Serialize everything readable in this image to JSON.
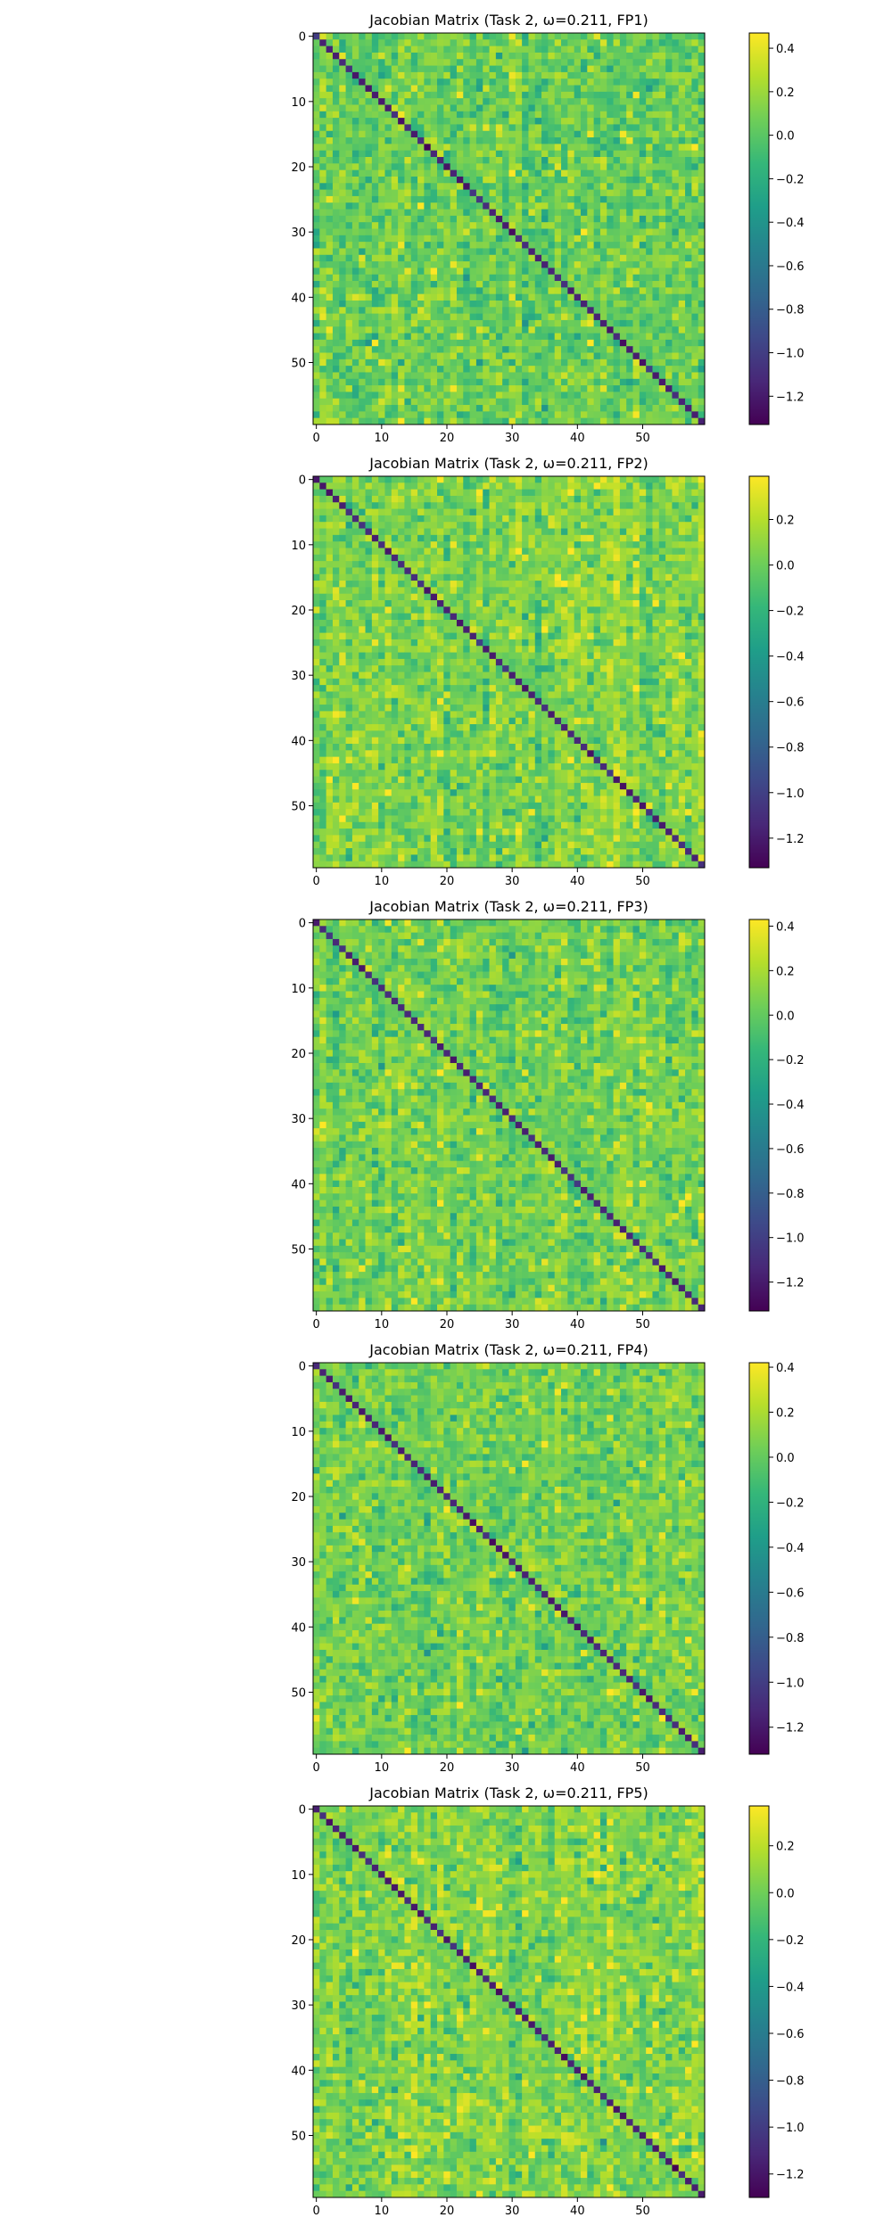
{
  "colormap": "viridis",
  "viridis_stops": [
    "#440154",
    "#482878",
    "#3e4989",
    "#31688e",
    "#26828e",
    "#1f9e89",
    "#35b779",
    "#6ece58",
    "#b5de2b",
    "#fde725"
  ],
  "chart_data": [
    {
      "type": "heatmap",
      "title": "Jacobian Matrix (Task 2, ω=0.211, FP1)",
      "matrix_size": 60,
      "xticks": [
        0,
        10,
        20,
        30,
        40,
        50
      ],
      "yticks": [
        0,
        10,
        20,
        30,
        40,
        50
      ],
      "xtick_labels": [
        "0",
        "10",
        "20",
        "30",
        "40",
        "50"
      ],
      "ytick_labels": [
        "0",
        "10",
        "20",
        "30",
        "40",
        "50"
      ],
      "vmin": -1.33,
      "vmax": 0.47,
      "colorbar_ticks": [
        0.4,
        0.2,
        0.0,
        -0.2,
        -0.4,
        -0.6,
        -0.8,
        -1.0,
        -1.2
      ],
      "colorbar_tick_labels": [
        "0.4",
        "0.2",
        "0.0",
        "−0.2",
        "−0.4",
        "−0.6",
        "−0.8",
        "−1.0",
        "−1.2"
      ],
      "diagonal_mean": -1.15,
      "off_diagonal_mean": 0.06,
      "off_diagonal_spread": 0.13,
      "seed": 11
    },
    {
      "type": "heatmap",
      "title": "Jacobian Matrix (Task 2, ω=0.211, FP2)",
      "matrix_size": 60,
      "xticks": [
        0,
        10,
        20,
        30,
        40,
        50
      ],
      "yticks": [
        0,
        10,
        20,
        30,
        40,
        50
      ],
      "xtick_labels": [
        "0",
        "10",
        "20",
        "30",
        "40",
        "50"
      ],
      "ytick_labels": [
        "0",
        "10",
        "20",
        "30",
        "40",
        "50"
      ],
      "vmin": -1.33,
      "vmax": 0.39,
      "colorbar_ticks": [
        0.2,
        0.0,
        -0.2,
        -0.4,
        -0.6,
        -0.8,
        -1.0,
        -1.2
      ],
      "colorbar_tick_labels": [
        "0.2",
        "0.0",
        "−0.2",
        "−0.4",
        "−0.6",
        "−0.8",
        "−1.0",
        "−1.2"
      ],
      "diagonal_mean": -1.15,
      "off_diagonal_mean": 0.05,
      "off_diagonal_spread": 0.12,
      "seed": 23
    },
    {
      "type": "heatmap",
      "title": "Jacobian Matrix (Task 2, ω=0.211, FP3)",
      "matrix_size": 60,
      "xticks": [
        0,
        10,
        20,
        30,
        40,
        50
      ],
      "yticks": [
        0,
        10,
        20,
        30,
        40,
        50
      ],
      "xtick_labels": [
        "0",
        "10",
        "20",
        "30",
        "40",
        "50"
      ],
      "ytick_labels": [
        "0",
        "10",
        "20",
        "30",
        "40",
        "50"
      ],
      "vmin": -1.33,
      "vmax": 0.43,
      "colorbar_ticks": [
        0.4,
        0.2,
        0.0,
        -0.2,
        -0.4,
        -0.6,
        -0.8,
        -1.0,
        -1.2
      ],
      "colorbar_tick_labels": [
        "0.4",
        "0.2",
        "0.0",
        "−0.2",
        "−0.4",
        "−0.6",
        "−0.8",
        "−1.0",
        "−1.2"
      ],
      "diagonal_mean": -1.15,
      "off_diagonal_mean": 0.05,
      "off_diagonal_spread": 0.12,
      "seed": 37
    },
    {
      "type": "heatmap",
      "title": "Jacobian Matrix (Task 2, ω=0.211, FP4)",
      "matrix_size": 60,
      "xticks": [
        0,
        10,
        20,
        30,
        40,
        50
      ],
      "yticks": [
        0,
        10,
        20,
        30,
        40,
        50
      ],
      "xtick_labels": [
        "0",
        "10",
        "20",
        "30",
        "40",
        "50"
      ],
      "ytick_labels": [
        "0",
        "10",
        "20",
        "30",
        "40",
        "50"
      ],
      "vmin": -1.32,
      "vmax": 0.42,
      "colorbar_ticks": [
        0.4,
        0.2,
        0.0,
        -0.2,
        -0.4,
        -0.6,
        -0.8,
        -1.0,
        -1.2
      ],
      "colorbar_tick_labels": [
        "0.4",
        "0.2",
        "0.0",
        "−0.2",
        "−0.4",
        "−0.6",
        "−0.8",
        "−1.0",
        "−1.2"
      ],
      "diagonal_mean": -1.15,
      "off_diagonal_mean": 0.05,
      "off_diagonal_spread": 0.12,
      "seed": 53
    },
    {
      "type": "heatmap",
      "title": "Jacobian Matrix (Task 2, ω=0.211, FP5)",
      "matrix_size": 60,
      "xticks": [
        0,
        10,
        20,
        30,
        40,
        50
      ],
      "yticks": [
        0,
        10,
        20,
        30,
        40,
        50
      ],
      "xtick_labels": [
        "0",
        "10",
        "20",
        "30",
        "40",
        "50"
      ],
      "ytick_labels": [
        "0",
        "10",
        "20",
        "30",
        "40",
        "50"
      ],
      "vmin": -1.3,
      "vmax": 0.37,
      "colorbar_ticks": [
        0.2,
        0.0,
        -0.2,
        -0.4,
        -0.6,
        -0.8,
        -1.0,
        -1.2
      ],
      "colorbar_tick_labels": [
        "0.2",
        "0.0",
        "−0.2",
        "−0.4",
        "−0.6",
        "−0.8",
        "−1.0",
        "−1.2"
      ],
      "diagonal_mean": -1.15,
      "off_diagonal_mean": 0.05,
      "off_diagonal_spread": 0.12,
      "seed": 71
    }
  ]
}
